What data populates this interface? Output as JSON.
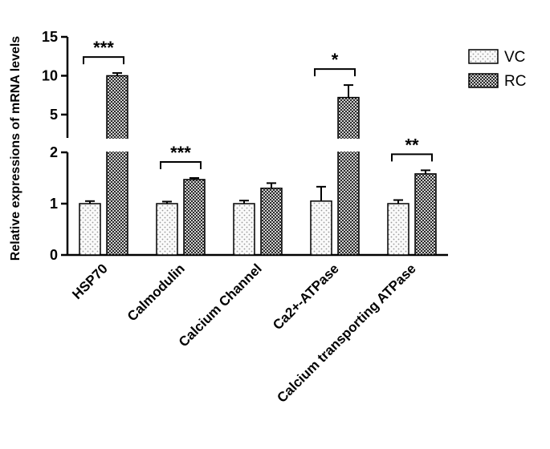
{
  "chart_data": {
    "type": "bar",
    "title": "",
    "xlabel": "",
    "ylabel": "Relative expressions of mRNA levels",
    "categories": [
      "HSP70",
      "Calmodulin",
      "Calcium Channel",
      "Ca2+-ATPase",
      "Calcium transporting ATPase"
    ],
    "series": [
      {
        "name": "VC",
        "values": [
          1.0,
          1.0,
          1.0,
          1.05,
          1.0
        ],
        "errors": [
          0.05,
          0.04,
          0.06,
          0.28,
          0.07
        ],
        "pattern": "dotted",
        "color": "#f2f2f2"
      },
      {
        "name": "RC",
        "values": [
          10.0,
          1.47,
          1.3,
          7.2,
          1.58
        ],
        "errors": [
          0.35,
          0.03,
          0.1,
          1.6,
          0.07
        ],
        "pattern": "crosshatch",
        "color": "#3a3a3a"
      }
    ],
    "y_axis_break": {
      "lower_range": [
        0,
        2
      ],
      "upper_range": [
        2,
        15
      ]
    },
    "lower_yticks": [
      "0",
      "1",
      "2"
    ],
    "upper_yticks": [
      "5",
      "10",
      "15"
    ],
    "significance": [
      "***",
      "***",
      "",
      "*",
      "**"
    ],
    "legend_position": "top-right",
    "grid": false
  }
}
